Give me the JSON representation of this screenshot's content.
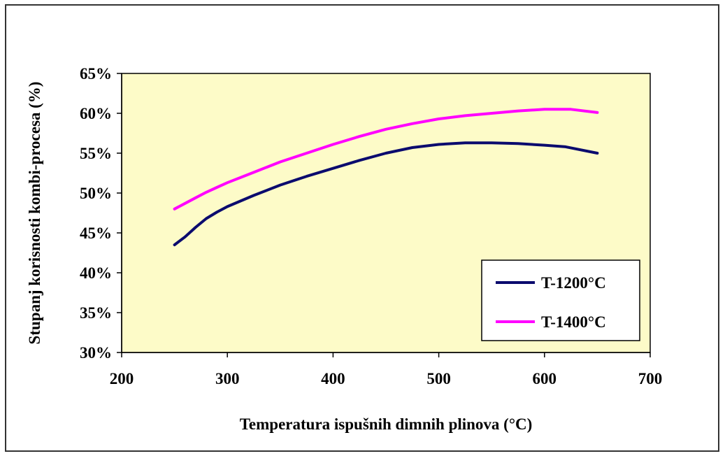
{
  "chart_data": {
    "type": "line",
    "title": "",
    "xlabel": "Temperatura ispušnih dimnih plinova (°C)",
    "ylabel": "Stupanj korisnosti kombi-procesa (%)",
    "xlim": [
      200,
      700
    ],
    "ylim": [
      30,
      65
    ],
    "x_ticks": [
      200,
      300,
      400,
      500,
      600,
      700
    ],
    "y_ticks": [
      30,
      35,
      40,
      45,
      50,
      55,
      60,
      65
    ],
    "x_tick_labels": [
      "200",
      "300",
      "400",
      "500",
      "600",
      "700"
    ],
    "y_tick_labels": [
      "30%",
      "35%",
      "40%",
      "45%",
      "50%",
      "55%",
      "60%",
      "65%"
    ],
    "grid": false,
    "plot_background": "#fdfbc8",
    "legend_position": "bottom-right",
    "series": [
      {
        "name": "T-1200°C",
        "color": "#0b0b6e",
        "x": [
          250,
          260,
          270,
          280,
          290,
          300,
          325,
          350,
          375,
          400,
          425,
          450,
          475,
          500,
          525,
          550,
          575,
          600,
          620,
          650
        ],
        "y": [
          43.5,
          44.5,
          45.7,
          46.8,
          47.6,
          48.3,
          49.7,
          51.0,
          52.1,
          53.1,
          54.1,
          55.0,
          55.7,
          56.1,
          56.3,
          56.3,
          56.2,
          56.0,
          55.8,
          55.0
        ]
      },
      {
        "name": "T-1400°C",
        "color": "#ff00ff",
        "x": [
          250,
          260,
          270,
          280,
          290,
          300,
          325,
          350,
          375,
          400,
          425,
          450,
          475,
          500,
          525,
          550,
          575,
          600,
          625,
          650
        ],
        "y": [
          48.0,
          48.7,
          49.4,
          50.1,
          50.7,
          51.3,
          52.6,
          53.9,
          55.0,
          56.1,
          57.1,
          58.0,
          58.7,
          59.3,
          59.7,
          60.0,
          60.3,
          60.5,
          60.5,
          60.1
        ]
      }
    ]
  }
}
